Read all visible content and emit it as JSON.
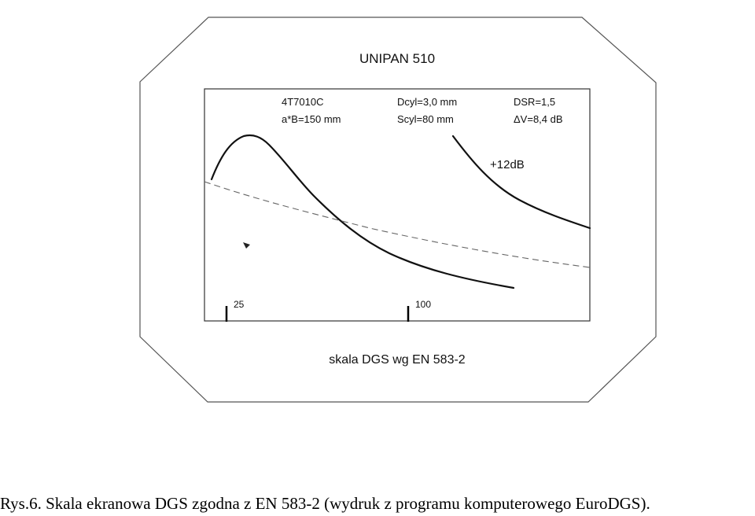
{
  "diagram": {
    "title": "UNIPAN 510",
    "params": {
      "probe": "4T7010C",
      "ab": "a*B=150 mm",
      "dcyl": "Dcyl=3,0 mm",
      "scyl": "Scyl=80 mm",
      "dsr": "DSR=1,5",
      "dv": "ΔV=8,4 dB"
    },
    "gain_label": "+12dB",
    "scale_marks": [
      "25",
      "100"
    ],
    "scale_caption": "skala DGS wg EN 583-2"
  },
  "caption": "Rys.6. Skala ekranowa DGS zgodna z EN 583-2 (wydruk z programu komputerowego EuroDGS)."
}
